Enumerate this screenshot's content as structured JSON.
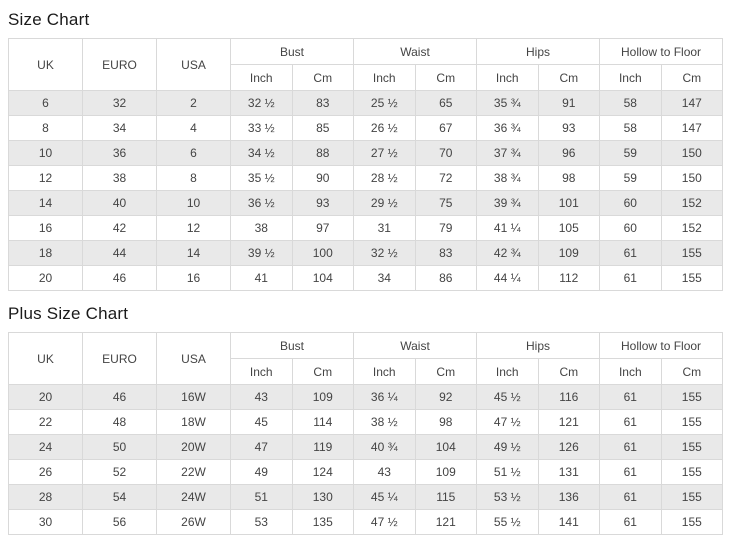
{
  "colors": {
    "stripe": "#e9e9e9",
    "border": "#d9d9d9",
    "text": "#444444",
    "title": "#1a1a1a"
  },
  "header": {
    "uk": "UK",
    "euro": "EURO",
    "usa": "USA",
    "groups": [
      "Bust",
      "Waist",
      "Hips",
      "Hollow to Floor"
    ],
    "sub": [
      "Inch",
      "Cm"
    ]
  },
  "size_chart": {
    "title": "Size Chart",
    "rows": [
      [
        "6",
        "32",
        "2",
        "32 ½",
        "83",
        "25 ½",
        "65",
        "35 ¾",
        "91",
        "58",
        "147"
      ],
      [
        "8",
        "34",
        "4",
        "33 ½",
        "85",
        "26 ½",
        "67",
        "36 ¾",
        "93",
        "58",
        "147"
      ],
      [
        "10",
        "36",
        "6",
        "34 ½",
        "88",
        "27 ½",
        "70",
        "37 ¾",
        "96",
        "59",
        "150"
      ],
      [
        "12",
        "38",
        "8",
        "35 ½",
        "90",
        "28 ½",
        "72",
        "38 ¾",
        "98",
        "59",
        "150"
      ],
      [
        "14",
        "40",
        "10",
        "36 ½",
        "93",
        "29 ½",
        "75",
        "39 ¾",
        "101",
        "60",
        "152"
      ],
      [
        "16",
        "42",
        "12",
        "38",
        "97",
        "31",
        "79",
        "41 ¼",
        "105",
        "60",
        "152"
      ],
      [
        "18",
        "44",
        "14",
        "39 ½",
        "100",
        "32 ½",
        "83",
        "42 ¾",
        "109",
        "61",
        "155"
      ],
      [
        "20",
        "46",
        "16",
        "41",
        "104",
        "34",
        "86",
        "44 ¼",
        "112",
        "61",
        "155"
      ]
    ]
  },
  "plus_size_chart": {
    "title": "Plus Size Chart",
    "rows": [
      [
        "20",
        "46",
        "16W",
        "43",
        "109",
        "36 ¼",
        "92",
        "45 ½",
        "116",
        "61",
        "155"
      ],
      [
        "22",
        "48",
        "18W",
        "45",
        "114",
        "38 ½",
        "98",
        "47 ½",
        "121",
        "61",
        "155"
      ],
      [
        "24",
        "50",
        "20W",
        "47",
        "119",
        "40 ¾",
        "104",
        "49 ½",
        "126",
        "61",
        "155"
      ],
      [
        "26",
        "52",
        "22W",
        "49",
        "124",
        "43",
        "109",
        "51 ½",
        "131",
        "61",
        "155"
      ],
      [
        "28",
        "54",
        "24W",
        "51",
        "130",
        "45 ¼",
        "115",
        "53 ½",
        "136",
        "61",
        "155"
      ],
      [
        "30",
        "56",
        "26W",
        "53",
        "135",
        "47 ½",
        "121",
        "55 ½",
        "141",
        "61",
        "155"
      ]
    ]
  }
}
